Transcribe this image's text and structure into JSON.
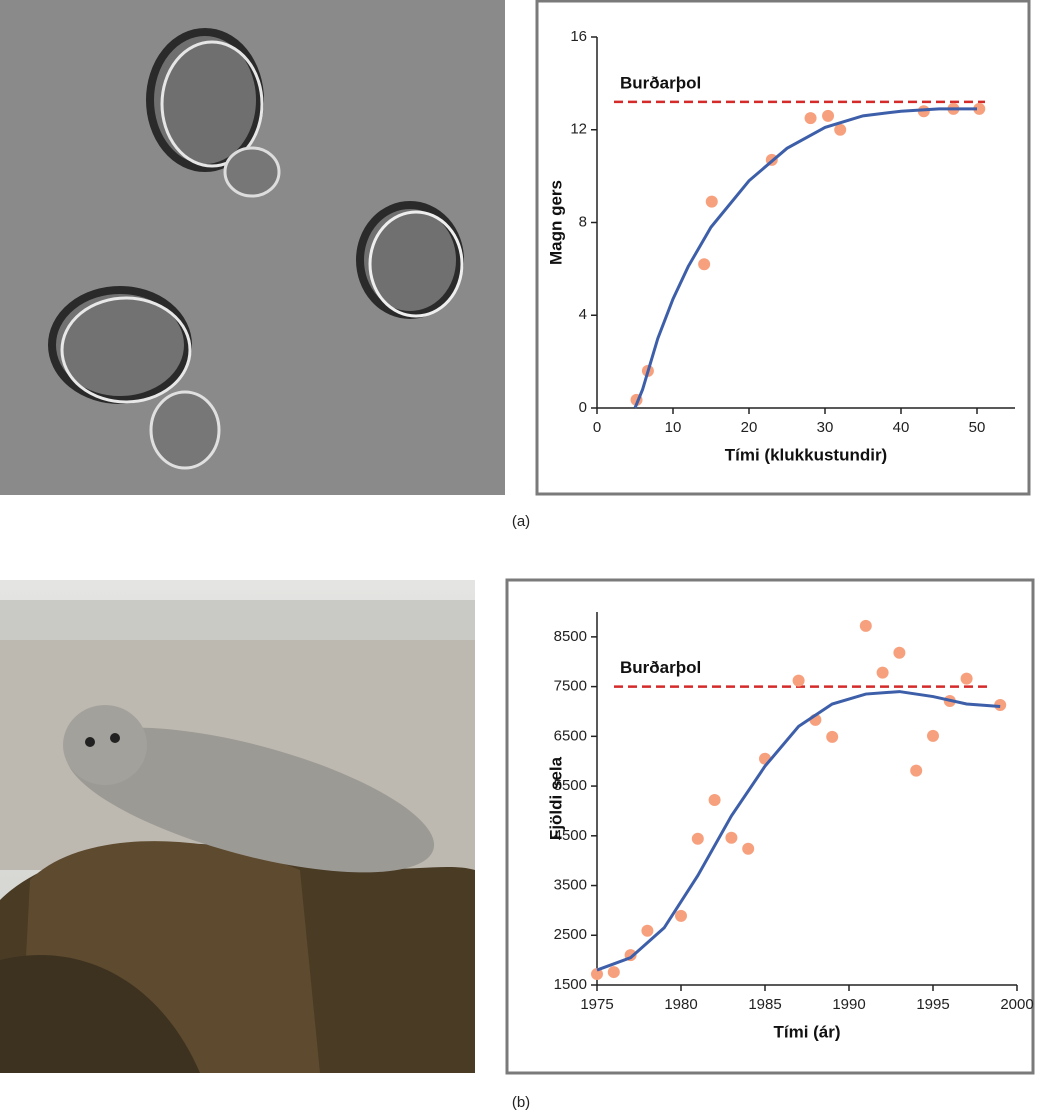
{
  "chart_data": [
    {
      "type": "scatter",
      "panel_label": "(a)",
      "x_label": "Tími (klukkustundir)",
      "y_label": "Magn gers",
      "xlim": [
        0,
        55
      ],
      "ylim": [
        0,
        16
      ],
      "xticks": [
        0,
        10,
        20,
        30,
        40,
        50
      ],
      "yticks": [
        0,
        4,
        8,
        12,
        16
      ],
      "capacity": {
        "label": "Burðarþol",
        "value": 13.2,
        "color": "#d42a2a"
      },
      "series": [
        {
          "type": "scatter",
          "color": "#f7a07e",
          "x": [
            5.2,
            6.7,
            14.1,
            15.1,
            23,
            28.1,
            30.4,
            32,
            43,
            46.9,
            50.3
          ],
          "values": [
            0.35,
            1.6,
            6.2,
            8.9,
            10.7,
            12.5,
            12.6,
            12.0,
            12.8,
            12.9,
            12.9
          ]
        },
        {
          "type": "line",
          "color": "#3d5ea9",
          "x": [
            5,
            6,
            8,
            10,
            12,
            15,
            20,
            25,
            30,
            35,
            40,
            45,
            50
          ],
          "values": [
            0,
            0.8,
            3.0,
            4.7,
            6.1,
            7.8,
            9.8,
            11.2,
            12.1,
            12.6,
            12.8,
            12.9,
            12.9
          ]
        }
      ]
    },
    {
      "type": "scatter",
      "panel_label": "(b)",
      "x_label": "Tími (ár)",
      "y_label": "Fjöldi sela",
      "xlim": [
        1975,
        2000
      ],
      "ylim": [
        1500,
        9000
      ],
      "xticks": [
        1975,
        1980,
        1985,
        1990,
        1995,
        2000
      ],
      "yticks": [
        1500,
        2500,
        3500,
        4500,
        5500,
        6500,
        7500,
        8500
      ],
      "capacity": {
        "label": "Burðarþol",
        "value": 7500,
        "color": "#d42a2a"
      },
      "series": [
        {
          "type": "scatter",
          "color": "#f7a07e",
          "x": [
            1975,
            1976,
            1977,
            1978,
            1980,
            1981,
            1982,
            1983,
            1984,
            1985,
            1987,
            1988,
            1989,
            1991,
            1992,
            1993,
            1994,
            1995,
            1996,
            1997,
            1999
          ],
          "values": [
            1720,
            1760,
            2100,
            2590,
            2890,
            4440,
            5220,
            4460,
            4240,
            6050,
            7620,
            6830,
            6490,
            8720,
            7780,
            8180,
            5810,
            6510,
            7210,
            7660,
            7130
          ]
        },
        {
          "type": "line",
          "color": "#3d5ea9",
          "x": [
            1975,
            1977,
            1979,
            1981,
            1983,
            1985,
            1987,
            1989,
            1991,
            1993,
            1995,
            1997,
            1999
          ],
          "values": [
            1800,
            2050,
            2650,
            3700,
            4900,
            5900,
            6700,
            7150,
            7350,
            7400,
            7300,
            7150,
            7100
          ]
        }
      ]
    }
  ]
}
